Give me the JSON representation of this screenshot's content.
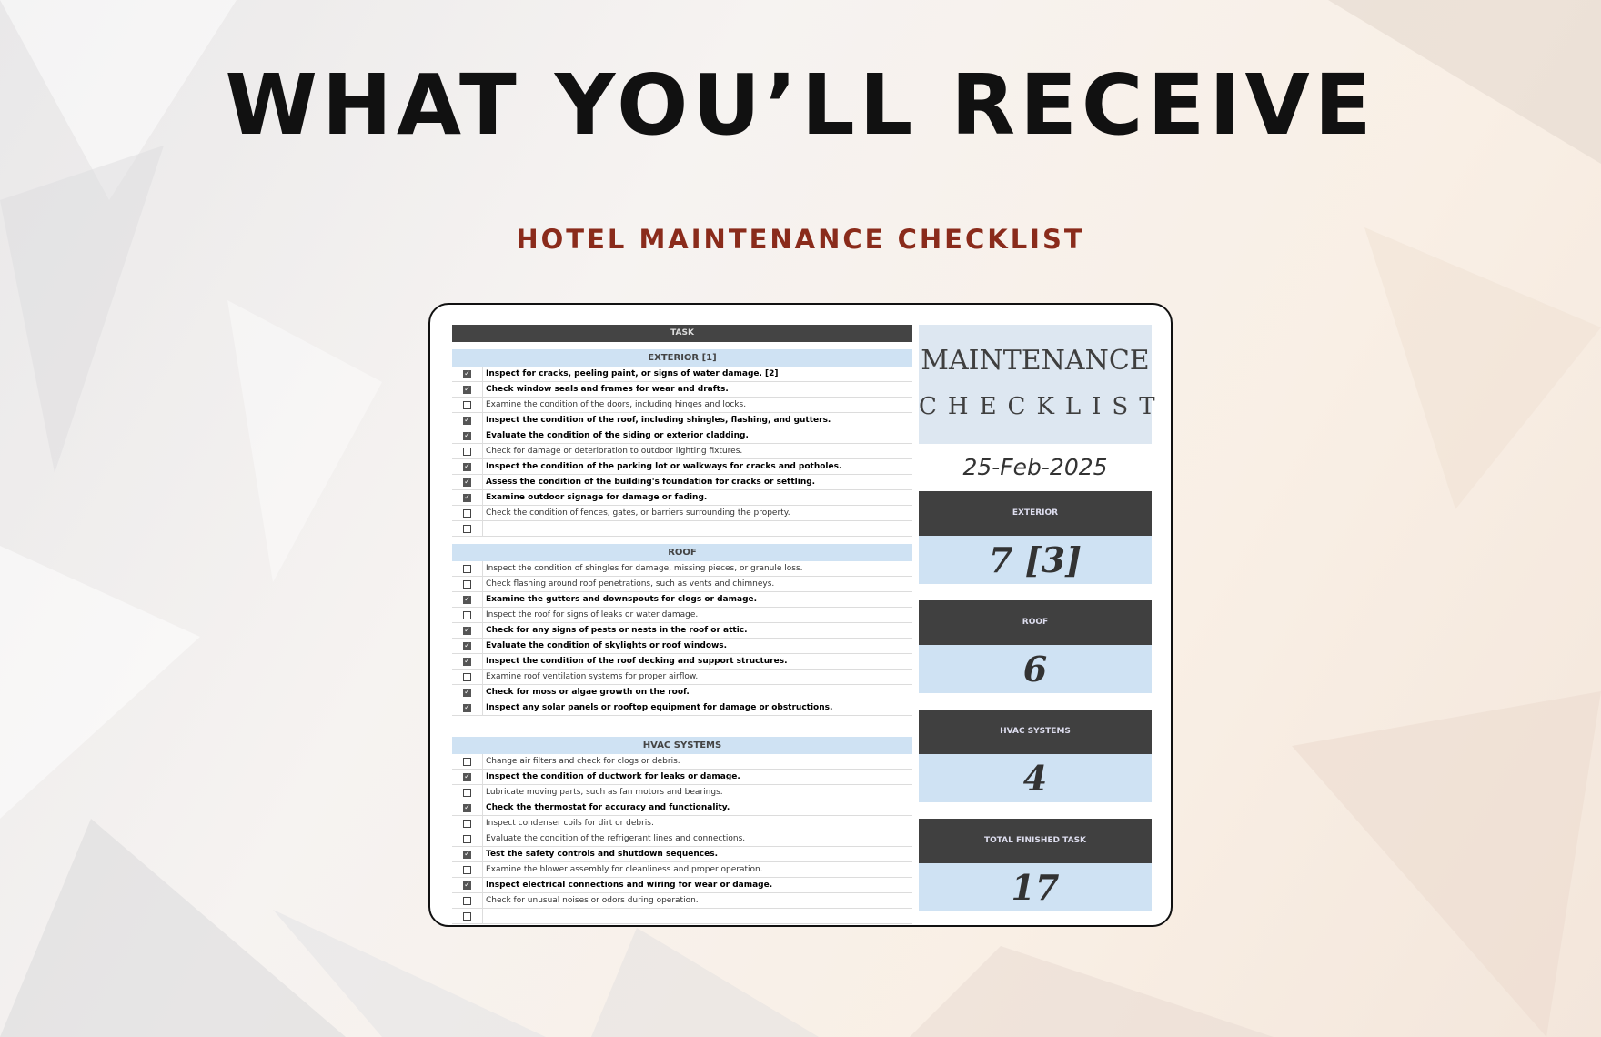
{
  "heading": "WHAT YOU’LL RECEIVE",
  "subheading": "HOTEL MAINTENANCE CHECKLIST",
  "table": {
    "header": "TASK",
    "sections": [
      {
        "title": "EXTERIOR [1]",
        "rows": [
          {
            "checked": true,
            "text": "Inspect for cracks, peeling paint, or signs of water damage. [2]"
          },
          {
            "checked": true,
            "text": "Check window seals and frames for wear and drafts."
          },
          {
            "checked": false,
            "text": "Examine the condition of the doors, including hinges and locks."
          },
          {
            "checked": true,
            "text": "Inspect the condition of the roof, including shingles, flashing, and gutters."
          },
          {
            "checked": true,
            "text": "Evaluate the condition of the siding or exterior cladding."
          },
          {
            "checked": false,
            "text": "Check for damage or deterioration to outdoor lighting fixtures."
          },
          {
            "checked": true,
            "text": "Inspect the condition of the parking lot or walkways for cracks and potholes."
          },
          {
            "checked": true,
            "text": "Assess the condition of the building's foundation for cracks or settling."
          },
          {
            "checked": true,
            "text": "Examine outdoor signage for damage or fading."
          },
          {
            "checked": false,
            "text": "Check the condition of fences, gates, or barriers surrounding the property."
          },
          {
            "checked": false,
            "text": ""
          }
        ]
      },
      {
        "title": "ROOF",
        "rows": [
          {
            "checked": false,
            "text": "Inspect the condition of shingles for damage, missing pieces, or granule loss."
          },
          {
            "checked": false,
            "text": "Check flashing around roof penetrations, such as vents and chimneys."
          },
          {
            "checked": true,
            "text": "Examine the gutters and downspouts for clogs or damage."
          },
          {
            "checked": false,
            "text": "Inspect the roof for signs of leaks or water damage."
          },
          {
            "checked": true,
            "text": "Check for any signs of pests or nests in the roof or attic."
          },
          {
            "checked": true,
            "text": "Evaluate the condition of skylights or roof windows."
          },
          {
            "checked": true,
            "text": "Inspect the condition of the roof decking and support structures."
          },
          {
            "checked": false,
            "text": "Examine roof ventilation systems for proper airflow."
          },
          {
            "checked": true,
            "text": "Check for moss or algae growth on the roof."
          },
          {
            "checked": true,
            "text": "Inspect any solar panels or rooftop equipment for damage or obstructions."
          }
        ]
      },
      {
        "title": "HVAC SYSTEMS",
        "rows": [
          {
            "checked": false,
            "text": "Change air filters and check for clogs or debris."
          },
          {
            "checked": true,
            "text": "Inspect the condition of ductwork for leaks or damage."
          },
          {
            "checked": false,
            "text": "Lubricate moving parts, such as fan motors and bearings."
          },
          {
            "checked": true,
            "text": "Check the thermostat for accuracy and functionality."
          },
          {
            "checked": false,
            "text": "Inspect condenser coils for dirt or debris."
          },
          {
            "checked": false,
            "text": "Evaluate the condition of the refrigerant lines and connections."
          },
          {
            "checked": true,
            "text": "Test the safety controls and shutdown sequences."
          },
          {
            "checked": false,
            "text": "Examine the blower assembly for cleanliness and proper operation."
          },
          {
            "checked": true,
            "text": "Inspect electrical connections and wiring for wear or damage."
          },
          {
            "checked": false,
            "text": "Check for unusual noises or odors during operation."
          },
          {
            "checked": false,
            "text": ""
          }
        ]
      }
    ]
  },
  "panel": {
    "title_line1": "MAINTENANCE",
    "title_line2": "CHECKLIST",
    "date": "25-Feb-2025",
    "cards": [
      {
        "label": "EXTERIOR",
        "value": "7 [3]"
      },
      {
        "label": "ROOF",
        "value": "6"
      },
      {
        "label": "HVAC SYSTEMS",
        "value": "4"
      },
      {
        "label": "TOTAL FINISHED TASK",
        "value": "17"
      }
    ]
  },
  "colors": {
    "accent": "#8a2b1b",
    "dark": "#404040",
    "light_blue": "#cfe2f3"
  }
}
